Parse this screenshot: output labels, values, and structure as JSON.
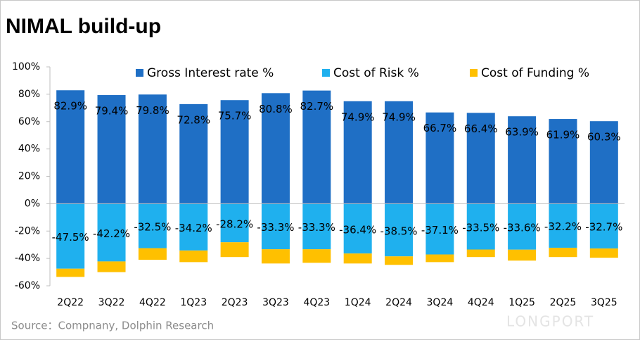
{
  "chart_data": {
    "type": "bar",
    "title": "NIMAL build-up",
    "source": "Source：Compnany, Dolphin Research",
    "watermark": "LONGPORT",
    "categories": [
      "2Q22",
      "3Q22",
      "4Q22",
      "1Q23",
      "2Q23",
      "3Q23",
      "4Q23",
      "1Q24",
      "2Q24",
      "3Q24",
      "4Q24",
      "1Q25",
      "2Q25",
      "3Q25"
    ],
    "series": [
      {
        "name": "Gross Interest rate %",
        "color": "#1f6fc5",
        "values": [
          82.9,
          79.4,
          79.8,
          72.8,
          75.7,
          80.8,
          82.7,
          74.9,
          74.9,
          66.7,
          66.4,
          63.9,
          61.9,
          60.3
        ],
        "value_labels": [
          "82.9%",
          "79.4%",
          "79.8%",
          "72.8%",
          "75.7%",
          "80.8%",
          "82.7%",
          "74.9%",
          "74.9%",
          "66.7%",
          "66.4%",
          "63.9%",
          "61.9%",
          "60.3%"
        ]
      },
      {
        "name": "Cost of Risk %",
        "color": "#1fb0ee",
        "values": [
          -47.5,
          -42.2,
          -32.5,
          -34.2,
          -28.2,
          -33.3,
          -33.3,
          -36.4,
          -38.5,
          -37.1,
          -33.5,
          -33.6,
          -32.2,
          -32.7
        ],
        "value_labels": [
          "-47.5%",
          "-42.2%",
          "-32.5%",
          "-34.2%",
          "-28.2%",
          "-33.3%",
          "-33.3%",
          "-36.4%",
          "-38.5%",
          "-37.1%",
          "-33.5%",
          "-33.6%",
          "-32.2%",
          "-32.7%"
        ]
      },
      {
        "name": "Cost of Funding %",
        "color": "#ffc000",
        "values": [
          -6,
          -7.8,
          -8.5,
          -8.5,
          -10.8,
          -10.4,
          -9.9,
          -7.3,
          -6.2,
          -5.6,
          -5.5,
          -8,
          -6.8,
          -6.8
        ]
      }
    ],
    "ylim": [
      -60,
      100
    ],
    "yticks": [
      {
        "value": -60,
        "label": "-60%"
      },
      {
        "value": -40,
        "label": "-40%"
      },
      {
        "value": -20,
        "label": "-20%"
      },
      {
        "value": 0,
        "label": "0%"
      },
      {
        "value": 20,
        "label": "20%"
      },
      {
        "value": 40,
        "label": "40%"
      },
      {
        "value": 60,
        "label": "60%"
      },
      {
        "value": 80,
        "label": "80%"
      },
      {
        "value": 100,
        "label": "100%"
      }
    ],
    "grid": false
  }
}
